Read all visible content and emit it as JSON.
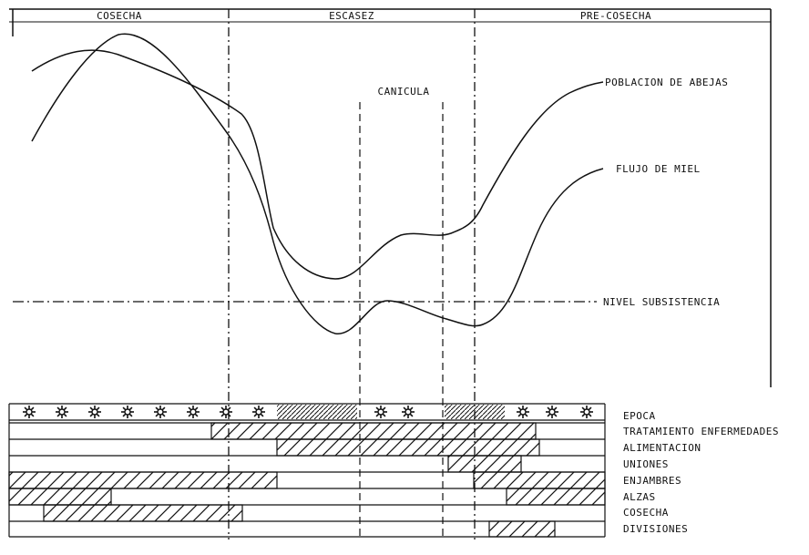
{
  "periods": {
    "cosecha": "COSECHA",
    "escasez": "ESCASEZ",
    "pre_cosecha": "PRE-COSECHA"
  },
  "canicula": "CANICULA",
  "curves": {
    "poblacion": "POBLACION DE ABEJAS",
    "flujo": "FLUJO DE MIEL",
    "nivel": "NIVEL SUBSISTENCIA"
  },
  "activities": [
    {
      "label": "EPOCA"
    },
    {
      "label": "TRATAMIENTO ENFERMEDADES"
    },
    {
      "label": "ALIMENTACION"
    },
    {
      "label": "UNIONES"
    },
    {
      "label": "ENJAMBRES"
    },
    {
      "label": "ALZAS"
    },
    {
      "label": "COSECHA"
    },
    {
      "label": "DIVISIONES"
    }
  ],
  "colors": {
    "ink": "#111111",
    "background": "#ffffff"
  }
}
